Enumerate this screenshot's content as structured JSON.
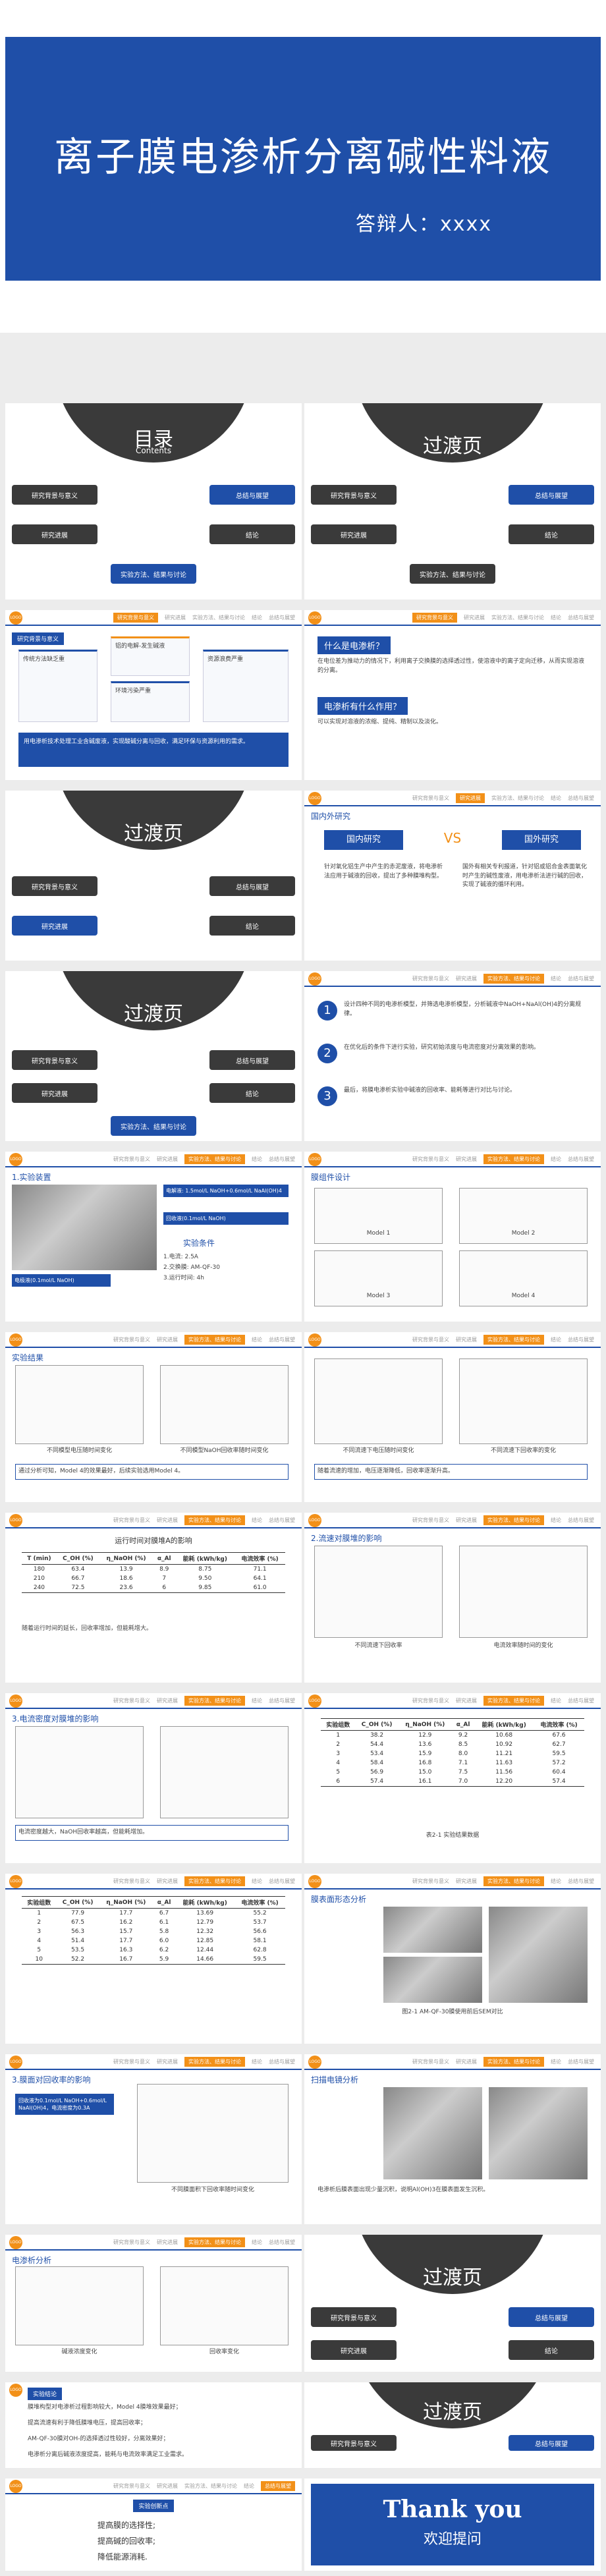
{
  "cover": {
    "title": "离子膜电渗析分离碱性料液",
    "presenter": "答辩人：xxxx"
  },
  "nav": {
    "items": [
      "研究背景与意义",
      "研究进展",
      "实验方法、结果与讨论",
      "结论",
      "总结与展望"
    ],
    "short": [
      "研究背景与意义",
      "研究进展",
      "实验方法、结果与讨论",
      "结论",
      "总结与展望"
    ]
  },
  "toc": {
    "title": "目录",
    "subtitle": "Contents"
  },
  "transition": {
    "title": "过渡页"
  },
  "s3": {
    "tag": "研究背景与意义",
    "q1": "传统方法缺乏重",
    "q2": "铝的电解-发生碱液",
    "q3": "环境污染严重",
    "q4": "资源浪费严重",
    "summary": "用电渗析技术处理工业含碱废液，实现酸碱分离与回收，满足环保与资源利用的需求。"
  },
  "s4": {
    "q1": "什么是电渗析？",
    "a1": "在电位差为推动力的情况下，利用离子交换膜的选择透过性，使溶液中的离子定向迁移，从而实现溶液的分离。",
    "q2": "电渗析有什么作用？",
    "a2": "可以实现对溶液的浓缩、提纯、精制以及淡化。"
  },
  "s6": {
    "sub": "国内外研究",
    "left_head": "国内研究",
    "vs": "VS",
    "right_head": "国外研究",
    "left_text": "针对氧化铝生产中产生的赤泥废液，将电渗析法应用于碱液的回收，提出了多种膜堆构型。",
    "right_text": "国外有相关专利报道，针对铝或铝合金表面氧化时产生的碱性废液，用电渗析法进行碱的回收，实现了碱液的循环利用。"
  },
  "s8": {
    "items": [
      "设计四种不同的电渗析模型，并筛选电渗析模型，分析碱液中NaOH+NaAl(OH)4的分离规律。",
      "在优化后的条件下进行实验，研究初始浓度与电流密度对分离效果的影响。",
      "最后，将膜电渗析实验中碱液的回收率、能耗等进行对比与讨论。"
    ]
  },
  "s9": {
    "sub": "1.实验装置",
    "labels": [
      "电解液: 1.5mol/L NaOH+0.6mol/L NaAl(OH)4",
      "回收液(0.1mol/L NaOH)",
      "电极液(0.1mol/L NaOH)"
    ],
    "cond_title": "实验条件",
    "cond": [
      "1.电流: 2.5A",
      "2.交换膜: AM-QF-30",
      "3.运行时间: 4h"
    ],
    "model_title": "膜组件设计",
    "models": [
      "Model 1",
      "Model 2",
      "Model 3",
      "Model 4"
    ]
  },
  "s11": {
    "sub": "实验结果",
    "cap1": "不同模型电压随时间变化",
    "cap2": "不同模型NaOH回收率随时间变化",
    "note": "通过分析可知，Model 4的效果最好，后续实验选用Model 4。"
  },
  "s12": {
    "cap1": "不同流速下电压随时间变化",
    "cap2": "不同流速下回收率的变化",
    "note": "随着流速的增加，电压逐渐降低，回收率逐渐升高。"
  },
  "s13": {
    "title": "运行时间对膜堆A的影响",
    "head": [
      "T (min)",
      "C_OH (%)",
      "η_NaOH (%)",
      "α_Al",
      "能耗 (kWh/kg)",
      "电流效率 (%)"
    ],
    "rows": [
      [
        "180",
        "63.4",
        "13.9",
        "8.9",
        "8.75",
        "71.1"
      ],
      [
        "210",
        "66.7",
        "18.6",
        "7",
        "9.50",
        "64.1"
      ],
      [
        "240",
        "72.5",
        "23.6",
        "6",
        "9.85",
        "61.0"
      ]
    ],
    "note": "随着运行时间的延长，回收率增加，但能耗增大。"
  },
  "s14": {
    "sub": "2.流速对膜堆的影响",
    "cap1": "不同流速下回收率",
    "cap2": "电流效率随时间的变化"
  },
  "s15": {
    "sub": "3.电流密度对膜堆的影响",
    "note": "电流密度越大，NaOH回收率越高，但能耗增加。"
  },
  "s16": {
    "head": [
      "实验组数",
      "C_OH (%)",
      "η_NaOH (%)",
      "α_Al",
      "能耗 (kWh/kg)",
      "电流效率 (%)"
    ],
    "rows": [
      [
        "1",
        "38.2",
        "12.9",
        "9.2",
        "10.68",
        "67.6"
      ],
      [
        "2",
        "54.4",
        "13.6",
        "8.5",
        "10.92",
        "62.7"
      ],
      [
        "3",
        "53.4",
        "15.9",
        "8.0",
        "11.21",
        "59.5"
      ],
      [
        "4",
        "58.4",
        "16.8",
        "7.1",
        "11.63",
        "57.2"
      ],
      [
        "5",
        "56.9",
        "15.0",
        "7.5",
        "11.56",
        "60.4"
      ],
      [
        "6",
        "57.4",
        "16.1",
        "7.0",
        "12.20",
        "57.4"
      ]
    ],
    "caption": "表2-1 实验结果数据"
  },
  "s17": {
    "head": [
      "实验组数",
      "C_OH (%)",
      "η_NaOH (%)",
      "α_Al",
      "能耗 (kWh/kg)",
      "电流效率 (%)"
    ],
    "rows": [
      [
        "1",
        "77.9",
        "17.7",
        "6.7",
        "13.69",
        "55.2"
      ],
      [
        "2",
        "67.5",
        "16.2",
        "6.1",
        "12.79",
        "53.7"
      ],
      [
        "3",
        "56.3",
        "15.7",
        "5.8",
        "12.32",
        "56.6"
      ],
      [
        "4",
        "51.4",
        "17.7",
        "6.0",
        "12.85",
        "58.1"
      ],
      [
        "5",
        "53.5",
        "16.3",
        "6.2",
        "12.44",
        "62.8"
      ],
      [
        "10",
        "52.2",
        "16.7",
        "5.9",
        "14.66",
        "59.5"
      ]
    ]
  },
  "s18": {
    "sub": "膜表面形态分析",
    "caption": "图2-1 AM-QF-30膜使用前后SEM对比"
  },
  "s19": {
    "sub": "3.膜面对回收率的影响",
    "box": "回收液为0.1mol/L NaOH+0.6mol/L NaAl(OH)4，电流密度为0.3A",
    "cap": "不同膜面积下回收率随时间变化"
  },
  "s20": {
    "sub": "扫描电镜分析",
    "note": "电渗析后膜表面出现少量沉积，说明Al(OH)3在膜表面发生沉积。"
  },
  "s23": {
    "sub": "电渗析分析",
    "cap1": "碱液浓度变化",
    "cap2": "回收率变化"
  },
  "s25": {
    "tag": "实验结论",
    "items": [
      "膜堆构型对电渗析过程影响较大，Model 4膜堆效果最好；",
      "提高流速有利于降低膜堆电压，提高回收率；",
      "AM-QF-30膜对OH-的选择透过性较好，分离效果好；",
      "电渗析分离后碱液浓度提高，能耗与电流效率满足工业需求。"
    ]
  },
  "s26": {
    "tag": "实验创新点",
    "items": [
      "提高膜的选择性;",
      "提高碱的回收率;",
      "降低能源消耗."
    ]
  },
  "thanks": {
    "big": "Thank you",
    "small": "欢迎提问"
  }
}
